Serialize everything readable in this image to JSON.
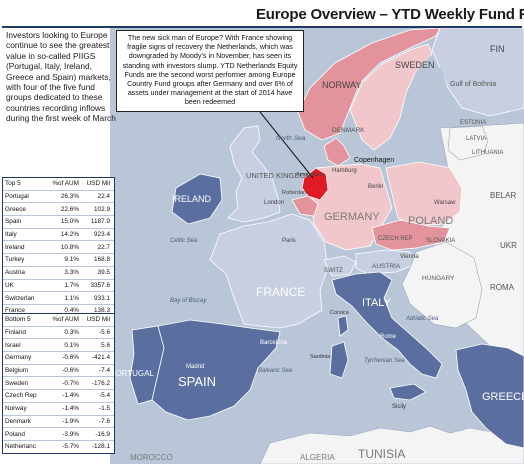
{
  "title": "Europe Overview – YTD Weekly Fund Flows",
  "intro_text": "Investors looking to Europe  continue to see the greatest value in  so-called PIIGS (Portugal, Italy, Ireland, Greece and Spain) markets, with four of the five fund groups dedicated to these countries recording inflows during the first week of March",
  "callout_text": "The new sick man of Europe? With France showing fragile signs of recovery the Netherlands,  which was downgraded by Moody's in November, has seen its standing with investors slump.  YTD Netherlands Equity Funds are the second worst performer among Europe Country Fund groups after Germany and over 6% of assets under management at the start of 2014 have been redeemed",
  "top_table": {
    "headers": [
      "Top 5",
      "%of AUM",
      "USD Mil"
    ],
    "rows": [
      {
        "country": "Portugal",
        "pct": "26.3%",
        "usd": "22.4"
      },
      {
        "country": "Greece",
        "pct": "22.6%",
        "usd": "102.9"
      },
      {
        "country": "Spain",
        "pct": "15.0%",
        "usd": "1187.9"
      },
      {
        "country": "Italy",
        "pct": "14.2%",
        "usd": "923.4"
      },
      {
        "country": "Ireland",
        "pct": "10.8%",
        "usd": "22.7"
      },
      {
        "country": "Turkey",
        "pct": "9.1%",
        "usd": "168.8"
      },
      {
        "country": "Austria",
        "pct": "3.3%",
        "usd": "39.5"
      },
      {
        "country": "UK",
        "pct": "1.7%",
        "usd": "3357.6"
      },
      {
        "country": "Switzerlan",
        "pct": "1.1%",
        "usd": "933.1"
      },
      {
        "country": "France",
        "pct": "0.4%",
        "usd": "138.3"
      }
    ]
  },
  "bottom_table": {
    "headers": [
      "Bottom 5",
      "%of AUM",
      "USD Mil"
    ],
    "rows": [
      {
        "country": "Finland",
        "pct": "0.3%",
        "usd": "-5.6"
      },
      {
        "country": "Israel",
        "pct": "0.1%",
        "usd": "5.6"
      },
      {
        "country": "Germany",
        "pct": "-0.6%",
        "usd": "-421.4"
      },
      {
        "country": "Belgium",
        "pct": "-0.6%",
        "usd": "-7.4"
      },
      {
        "country": "Sweden",
        "pct": "-0.7%",
        "usd": "-176.2"
      },
      {
        "country": "Czech Rep",
        "pct": "-1.4%",
        "usd": "-5.4"
      },
      {
        "country": "Norway",
        "pct": "-1.4%",
        "usd": "-1.5"
      },
      {
        "country": "Denmark",
        "pct": "-1.9%",
        "usd": "-7.6"
      },
      {
        "country": "Poland",
        "pct": "-3.9%",
        "usd": "-16.9"
      },
      {
        "country": "Netherlanc",
        "pct": "-5.7%",
        "usd": "-128.1"
      }
    ]
  },
  "map_labels": {
    "norway": "NORWAY",
    "sweden": "SWEDEN",
    "finland": "FIN",
    "gulf": "Gulf of Bothnia",
    "estonia": "ESTONIA",
    "latvia": "LATVIA",
    "lithuania": "LITHUANIA",
    "north_sea": "North Sea",
    "denmark": "DENMARK",
    "copenhagen": "Copenhagen",
    "hamburg": "Hamburg",
    "berlin": "Berlin",
    "warsaw": "Warsaw",
    "united_kingdom": "UNITED KINGDOM",
    "ireland": "IRELAND",
    "london": "London",
    "amsterdam": "Amsterdam",
    "rotterdam": "Rotterdam",
    "germany": "GERMANY",
    "poland": "POLAND",
    "belarus": "BELAR",
    "ukraine": "UKR",
    "czech": "CZECH REP",
    "slovakia": "SLOVAKIA",
    "paris": "Paris",
    "vienna": "Vienna",
    "austria": "AUSTRIA",
    "switzerland": "SWITZ",
    "france": "FRANCE",
    "hungary": "HUNGARY",
    "romania": "ROMA",
    "italy": "ITALY",
    "portugal": "PORTUGAL",
    "spain": "SPAIN",
    "madrid": "Madrid",
    "barcelona": "Barcelona",
    "rome": "Rome",
    "corsica": "Corsica",
    "sardinia": "Sardinia",
    "sicily": "Sicily",
    "tyrrhenian": "Tyrrhenian Sea",
    "balearic": "Balearic Sea",
    "adriatic": "Adriatic Sea",
    "greece": "GREECE",
    "tunisia": "TUNISIA",
    "algeria": "ALGERIA",
    "morocco": "MOROCCO",
    "celtic": "Celtic Sea",
    "biscay": "Bay of Biscay"
  },
  "colors": {
    "sea": "#b9c6d8",
    "land": "#f4f4f4",
    "red_light": "#f2c7cc",
    "red_mid": "#e3939b",
    "red_strong": "#e01b23",
    "blue_light": "#c7cfe0",
    "blue_dark": "#5a6fa0",
    "header_rule": "#1f3864"
  }
}
